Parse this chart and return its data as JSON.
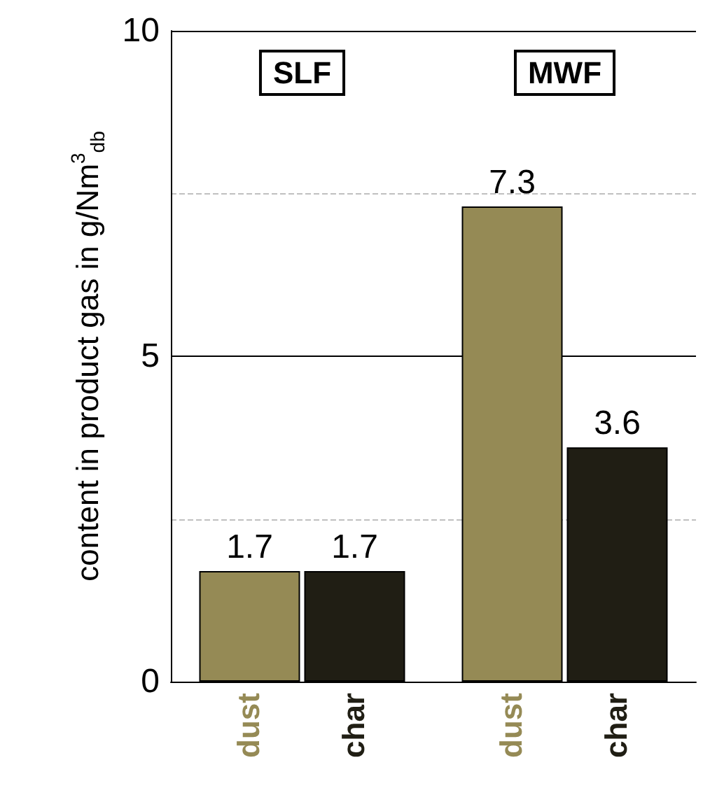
{
  "chart_data": {
    "type": "bar",
    "ylabel": "content in product gas in g/Nm$^{3}$$_{db}$",
    "categories": [
      "dust",
      "char",
      "dust",
      "char"
    ],
    "values": [
      1.7,
      1.7,
      7.3,
      3.6
    ],
    "colors": [
      "#958a55",
      "#201e14",
      "#958a55",
      "#201e14"
    ],
    "ylim": [
      0,
      10
    ],
    "yticks": [
      0,
      5,
      10
    ],
    "grid": "y",
    "data_labels": true,
    "ref_lines": [
      {
        "axis": "y",
        "value": 2.5,
        "color": "#c0c0c0",
        "line_style": "dashed"
      },
      {
        "axis": "y",
        "value": 7.5,
        "color": "#c0c0c0",
        "line_style": "dashed"
      }
    ],
    "annotations": [
      "SLF",
      "MWF"
    ]
  }
}
